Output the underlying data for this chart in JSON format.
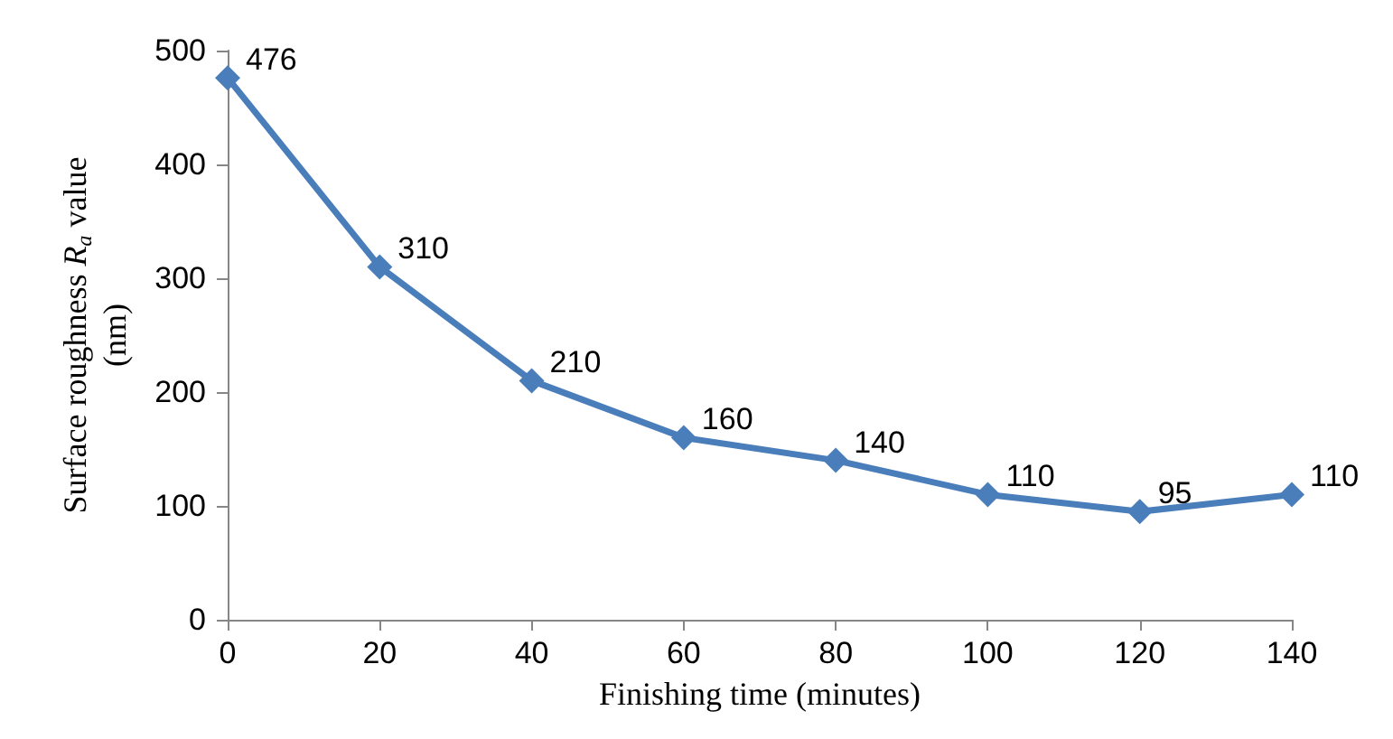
{
  "chart_data": {
    "type": "line",
    "xlabel": "Finishing time (minutes)",
    "ylabel": "Surface roughness R$_{a}$ value (nm)",
    "x": [
      0,
      20,
      40,
      60,
      80,
      100,
      120,
      140
    ],
    "series": [
      {
        "color": "#4a7ebb",
        "values": [
          476,
          310,
          210,
          160,
          140,
          110,
          95,
          110
        ]
      }
    ],
    "xlim": [
      0,
      140
    ],
    "xticks": [
      0,
      20,
      40,
      60,
      80,
      100,
      120,
      140
    ],
    "ylim": [
      0,
      500
    ],
    "yticks": [
      0,
      100,
      200,
      300,
      400,
      500
    ],
    "grid": false,
    "marker": "diamond",
    "line_style": "solid",
    "data_labels": true
  }
}
